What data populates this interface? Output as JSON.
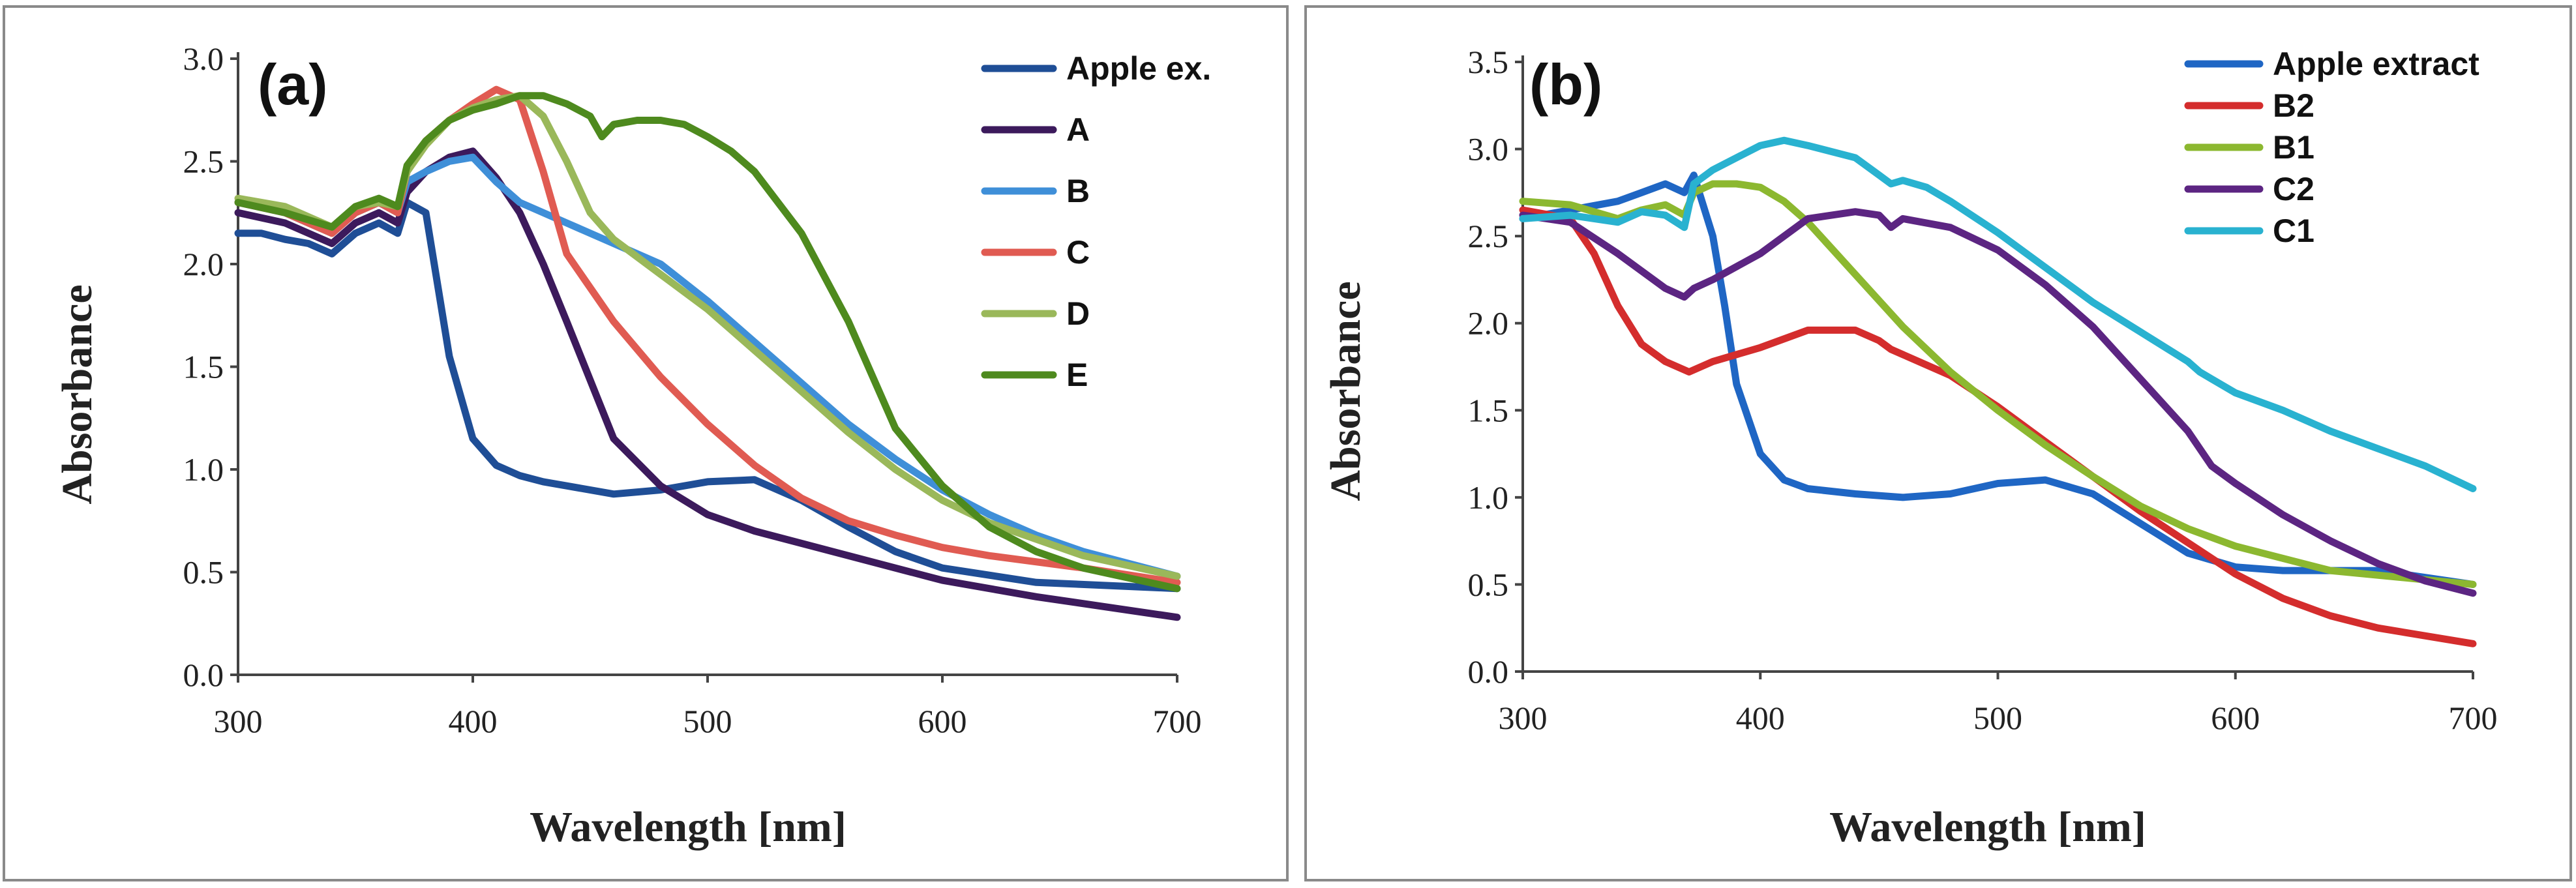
{
  "chart_data": [
    {
      "id": "a",
      "type": "line",
      "panel_label": "(a)",
      "xlabel": "Wavelength [nm]",
      "ylabel": "Absorbance",
      "xlim": [
        300,
        700
      ],
      "ylim": [
        0,
        3
      ],
      "xticks": [
        "300",
        "400",
        "500",
        "600",
        "700"
      ],
      "yticks": [
        "0.0",
        "0.5",
        "1.0",
        "1.5",
        "2.0",
        "2.5",
        "3.0"
      ],
      "legend_position": "top-right",
      "series": [
        {
          "name": "Apple ex.",
          "color": "#1f4e96",
          "x": [
            300,
            310,
            320,
            330,
            340,
            350,
            360,
            368,
            372,
            380,
            390,
            400,
            410,
            420,
            430,
            440,
            460,
            480,
            500,
            520,
            540,
            560,
            580,
            600,
            640,
            700
          ],
          "y": [
            2.15,
            2.15,
            2.12,
            2.1,
            2.05,
            2.15,
            2.2,
            2.15,
            2.3,
            2.25,
            1.55,
            1.15,
            1.02,
            0.97,
            0.94,
            0.92,
            0.88,
            0.9,
            0.94,
            0.95,
            0.85,
            0.72,
            0.6,
            0.52,
            0.45,
            0.42
          ]
        },
        {
          "name": "A",
          "color": "#3c1a5c",
          "x": [
            300,
            320,
            340,
            350,
            360,
            368,
            372,
            380,
            390,
            400,
            410,
            420,
            430,
            440,
            460,
            480,
            500,
            520,
            560,
            600,
            640,
            700
          ],
          "y": [
            2.25,
            2.2,
            2.1,
            2.2,
            2.25,
            2.2,
            2.35,
            2.45,
            2.52,
            2.55,
            2.42,
            2.25,
            2.0,
            1.72,
            1.15,
            0.92,
            0.78,
            0.7,
            0.58,
            0.46,
            0.38,
            0.28
          ]
        },
        {
          "name": "B",
          "color": "#3f8fd8",
          "x": [
            300,
            320,
            340,
            350,
            360,
            368,
            372,
            380,
            390,
            400,
            410,
            420,
            440,
            460,
            480,
            500,
            520,
            540,
            560,
            580,
            600,
            620,
            640,
            660,
            700
          ],
          "y": [
            2.3,
            2.25,
            2.15,
            2.25,
            2.3,
            2.25,
            2.4,
            2.45,
            2.5,
            2.52,
            2.4,
            2.3,
            2.2,
            2.1,
            2.0,
            1.82,
            1.62,
            1.42,
            1.22,
            1.05,
            0.9,
            0.78,
            0.68,
            0.6,
            0.48
          ]
        },
        {
          "name": "C",
          "color": "#e05b52",
          "x": [
            300,
            320,
            340,
            350,
            360,
            368,
            372,
            380,
            390,
            400,
            410,
            420,
            430,
            440,
            460,
            480,
            500,
            520,
            540,
            560,
            580,
            600,
            620,
            660,
            700
          ],
          "y": [
            2.3,
            2.25,
            2.15,
            2.25,
            2.3,
            2.25,
            2.45,
            2.6,
            2.7,
            2.78,
            2.85,
            2.8,
            2.45,
            2.05,
            1.72,
            1.45,
            1.22,
            1.02,
            0.86,
            0.75,
            0.68,
            0.62,
            0.58,
            0.52,
            0.45
          ]
        },
        {
          "name": "D",
          "color": "#9ab85a",
          "x": [
            300,
            320,
            340,
            350,
            360,
            368,
            372,
            380,
            390,
            400,
            410,
            420,
            430,
            440,
            450,
            460,
            480,
            500,
            520,
            540,
            560,
            580,
            600,
            620,
            640,
            660,
            700
          ],
          "y": [
            2.32,
            2.28,
            2.18,
            2.28,
            2.3,
            2.28,
            2.45,
            2.58,
            2.7,
            2.76,
            2.8,
            2.82,
            2.72,
            2.5,
            2.25,
            2.12,
            1.95,
            1.78,
            1.58,
            1.38,
            1.18,
            1.0,
            0.85,
            0.74,
            0.66,
            0.58,
            0.48
          ]
        },
        {
          "name": "E",
          "color": "#4e8a1e",
          "x": [
            300,
            320,
            340,
            350,
            360,
            368,
            372,
            380,
            390,
            400,
            410,
            420,
            430,
            440,
            450,
            455,
            460,
            470,
            480,
            490,
            500,
            510,
            520,
            540,
            560,
            580,
            600,
            620,
            640,
            660,
            700
          ],
          "y": [
            2.3,
            2.25,
            2.18,
            2.28,
            2.32,
            2.28,
            2.48,
            2.6,
            2.7,
            2.75,
            2.78,
            2.82,
            2.82,
            2.78,
            2.72,
            2.62,
            2.68,
            2.7,
            2.7,
            2.68,
            2.62,
            2.55,
            2.45,
            2.15,
            1.72,
            1.2,
            0.92,
            0.72,
            0.6,
            0.52,
            0.42
          ]
        }
      ]
    },
    {
      "id": "b",
      "type": "line",
      "panel_label": "(b)",
      "xlabel": "Wavelength [nm]",
      "ylabel": "Absorbance",
      "xlim": [
        300,
        700
      ],
      "ylim": [
        0,
        3.5
      ],
      "xticks": [
        "300",
        "400",
        "500",
        "600",
        "700"
      ],
      "yticks": [
        "0.0",
        "0.5",
        "1.0",
        "1.5",
        "2.0",
        "2.5",
        "3.0",
        "3.5"
      ],
      "legend_position": "top-right",
      "series": [
        {
          "name": "Apple extract",
          "color": "#1f66c4",
          "x": [
            300,
            320,
            340,
            350,
            360,
            368,
            372,
            380,
            385,
            390,
            400,
            410,
            420,
            440,
            460,
            480,
            500,
            520,
            540,
            560,
            580,
            600,
            620,
            660,
            700
          ],
          "y": [
            2.6,
            2.65,
            2.7,
            2.75,
            2.8,
            2.75,
            2.85,
            2.5,
            2.1,
            1.65,
            1.25,
            1.1,
            1.05,
            1.02,
            1.0,
            1.02,
            1.08,
            1.1,
            1.02,
            0.85,
            0.68,
            0.6,
            0.58,
            0.58,
            0.5
          ]
        },
        {
          "name": "B2",
          "color": "#d42d2d",
          "x": [
            300,
            320,
            330,
            340,
            350,
            360,
            370,
            380,
            390,
            400,
            420,
            440,
            450,
            455,
            460,
            480,
            500,
            520,
            540,
            560,
            580,
            600,
            620,
            640,
            660,
            700
          ],
          "y": [
            2.65,
            2.6,
            2.4,
            2.1,
            1.88,
            1.78,
            1.72,
            1.78,
            1.82,
            1.86,
            1.96,
            1.96,
            1.9,
            1.85,
            1.82,
            1.7,
            1.52,
            1.32,
            1.12,
            0.92,
            0.74,
            0.56,
            0.42,
            0.32,
            0.25,
            0.16
          ]
        },
        {
          "name": "B1",
          "color": "#8cb830",
          "x": [
            300,
            320,
            340,
            350,
            360,
            368,
            372,
            380,
            390,
            400,
            410,
            420,
            440,
            460,
            480,
            500,
            520,
            540,
            560,
            580,
            600,
            620,
            640,
            700
          ],
          "y": [
            2.7,
            2.68,
            2.6,
            2.65,
            2.68,
            2.62,
            2.75,
            2.8,
            2.8,
            2.78,
            2.7,
            2.58,
            2.28,
            1.98,
            1.72,
            1.5,
            1.3,
            1.12,
            0.95,
            0.82,
            0.72,
            0.65,
            0.58,
            0.5
          ]
        },
        {
          "name": "C2",
          "color": "#5c2582",
          "x": [
            300,
            320,
            340,
            360,
            368,
            372,
            380,
            400,
            420,
            440,
            450,
            455,
            460,
            480,
            500,
            520,
            540,
            560,
            580,
            590,
            600,
            620,
            640,
            660,
            680,
            700
          ],
          "y": [
            2.62,
            2.58,
            2.4,
            2.2,
            2.15,
            2.2,
            2.25,
            2.4,
            2.6,
            2.64,
            2.62,
            2.55,
            2.6,
            2.55,
            2.42,
            2.22,
            1.98,
            1.68,
            1.38,
            1.18,
            1.08,
            0.9,
            0.75,
            0.62,
            0.52,
            0.45
          ]
        },
        {
          "name": "C1",
          "color": "#29b2d0",
          "x": [
            300,
            320,
            340,
            350,
            360,
            368,
            372,
            380,
            390,
            400,
            410,
            420,
            440,
            450,
            455,
            460,
            470,
            480,
            500,
            520,
            540,
            560,
            580,
            585,
            590,
            600,
            620,
            640,
            660,
            680,
            700
          ],
          "y": [
            2.6,
            2.62,
            2.58,
            2.64,
            2.62,
            2.55,
            2.8,
            2.88,
            2.95,
            3.02,
            3.05,
            3.02,
            2.95,
            2.85,
            2.8,
            2.82,
            2.78,
            2.7,
            2.52,
            2.32,
            2.12,
            1.95,
            1.78,
            1.72,
            1.68,
            1.6,
            1.5,
            1.38,
            1.28,
            1.18,
            1.05
          ]
        }
      ]
    }
  ]
}
